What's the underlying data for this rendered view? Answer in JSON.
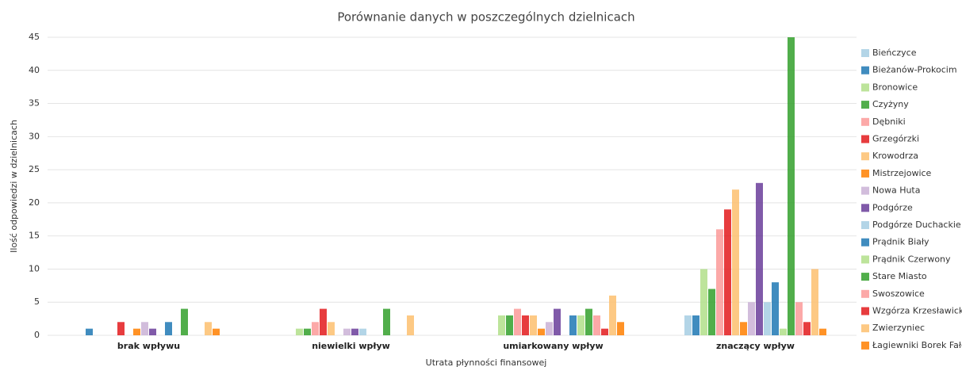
{
  "chart_data": {
    "type": "bar",
    "title": "Porównanie danych w poszczególnych dzielnicach",
    "x_label": "Utrata płynności finansowej",
    "y_label": "Ilość odpowiedzi w dzielnicach",
    "categories": [
      "brak wpływu",
      "niewielki wpływ",
      "umiarkowany wpływ",
      "znaczący wpływ"
    ],
    "ylim": [
      0,
      45
    ],
    "yticks": [
      0,
      5,
      10,
      15,
      20,
      25,
      30,
      35,
      40,
      45
    ],
    "grid": true,
    "series": [
      {
        "name": "Bieńczyce",
        "color": "#a6cee3",
        "values": [
          0,
          0,
          0,
          3
        ]
      },
      {
        "name": "Bieżanów-Prokocim",
        "color": "#1f78b4",
        "values": [
          1,
          0,
          0,
          3
        ]
      },
      {
        "name": "Bronowice",
        "color": "#b2df8a",
        "values": [
          0,
          1,
          3,
          10
        ]
      },
      {
        "name": "Czyżyny",
        "color": "#33a02c",
        "values": [
          0,
          1,
          3,
          7
        ]
      },
      {
        "name": "Dębniki",
        "color": "#fb9a99",
        "values": [
          0,
          2,
          4,
          16
        ]
      },
      {
        "name": "Grzegórzki",
        "color": "#e31a1c",
        "values": [
          2,
          4,
          3,
          19
        ]
      },
      {
        "name": "Krowodrza",
        "color": "#fdbf6f",
        "values": [
          0,
          2,
          3,
          22
        ]
      },
      {
        "name": "Mistrzejowice",
        "color": "#ff7f00",
        "values": [
          1,
          0,
          1,
          2
        ]
      },
      {
        "name": "Nowa Huta",
        "color": "#cab2d6",
        "values": [
          2,
          1,
          2,
          5
        ]
      },
      {
        "name": "Podgórze",
        "color": "#6a3d9a",
        "values": [
          1,
          1,
          4,
          23
        ]
      },
      {
        "name": "Podgórze Duchackie",
        "color": "#a6cee3",
        "values": [
          0,
          1,
          0,
          5
        ]
      },
      {
        "name": "Prądnik Biały",
        "color": "#1f78b4",
        "values": [
          2,
          0,
          3,
          8
        ]
      },
      {
        "name": "Prądnik Czerwony",
        "color": "#b2df8a",
        "values": [
          0,
          0,
          3,
          1
        ]
      },
      {
        "name": "Stare Miasto",
        "color": "#33a02c",
        "values": [
          4,
          4,
          4,
          45
        ]
      },
      {
        "name": "Swoszowice",
        "color": "#fb9a99",
        "values": [
          0,
          0,
          3,
          5
        ]
      },
      {
        "name": "Wzgórza Krzesławickie",
        "color": "#e31a1c",
        "values": [
          0,
          0,
          1,
          2
        ]
      },
      {
        "name": "Zwierzyniec",
        "color": "#fdbf6f",
        "values": [
          2,
          3,
          6,
          10
        ]
      },
      {
        "name": "Łagiewniki Borek Fałęcki",
        "color": "#ff7f00",
        "values": [
          1,
          0,
          2,
          1
        ]
      }
    ]
  }
}
